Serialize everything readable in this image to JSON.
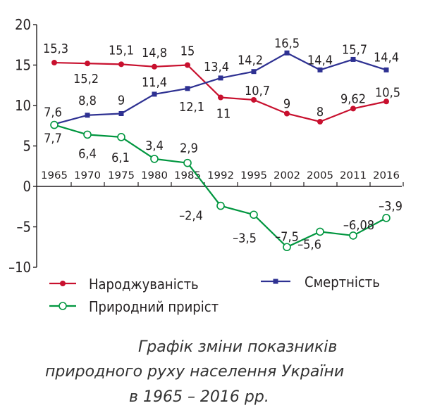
{
  "chart_data": {
    "type": "line",
    "categories": [
      "1965",
      "1970",
      "1975",
      "1980",
      "1985",
      "1992",
      "1995",
      "2002",
      "2005",
      "2011",
      "2016"
    ],
    "series": [
      {
        "name": "Народжуваність",
        "color": "#c8102e",
        "marker": "circle-filled",
        "values": [
          15.3,
          15.2,
          15.1,
          14.8,
          15,
          11,
          10.7,
          9,
          8,
          9.62,
          10.5
        ],
        "labels": [
          "15,3",
          "15,2",
          "15,1",
          "14,8",
          "15",
          "11",
          "10,7",
          "9",
          "8",
          "9,62",
          "10,5"
        ]
      },
      {
        "name": "Смертність",
        "color": "#2e3192",
        "marker": "square-filled",
        "values": [
          7.7,
          8.8,
          9,
          11.4,
          12.1,
          13.4,
          14.2,
          16.5,
          14.4,
          15.7,
          14.4
        ],
        "labels": [
          "7,7",
          "8,8",
          "9",
          "11,4",
          "12,1",
          "13,4",
          "14,2",
          "16,5",
          "14,4",
          "15,7",
          "14,4"
        ]
      },
      {
        "name": "Природний приріст",
        "color": "#00963f",
        "marker": "circle-open",
        "values": [
          7.6,
          6.4,
          6.1,
          3.4,
          2.9,
          -2.4,
          -3.5,
          -7.5,
          -5.6,
          -6.08,
          -3.9
        ],
        "labels": [
          "7,6",
          "6,4",
          "6,1",
          "3,4",
          "2,9",
          "–2,4",
          "–3,5",
          "–7,5",
          "–5,6",
          "–6,08",
          "–3,9"
        ]
      }
    ],
    "ylim": [
      -10,
      20
    ],
    "yticks": [
      -10,
      -5,
      0,
      5,
      10,
      15,
      20
    ],
    "ytick_labels": [
      "–10",
      "–5",
      "0",
      "5",
      "10",
      "15",
      "20"
    ],
    "legend_position": "bottom",
    "title": "",
    "xlabel": "",
    "ylabel": ""
  },
  "caption": {
    "line1": "Графік зміни показників",
    "line2": "природного руху населення України",
    "line3": "в 1965 – 2016 рр."
  }
}
